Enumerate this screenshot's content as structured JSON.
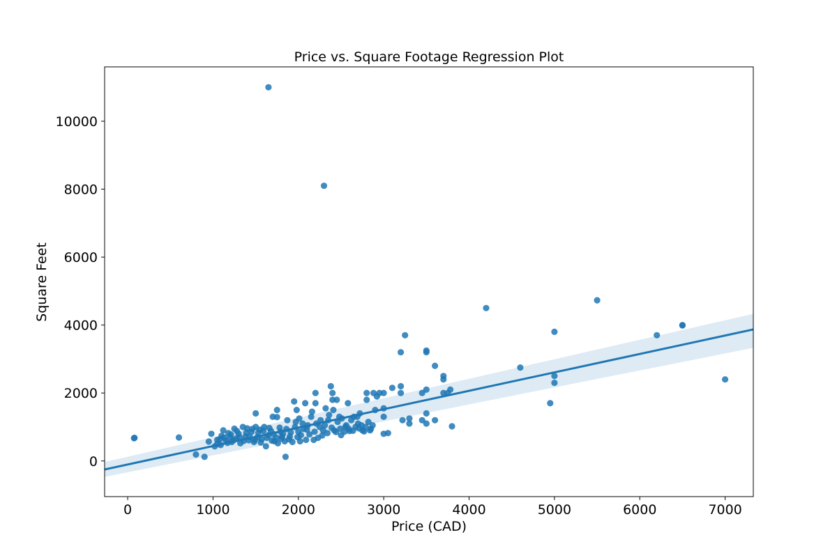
{
  "chart_data": {
    "type": "scatter",
    "title": "Price vs. Square Footage Regression Plot",
    "xlabel": "Price (CAD)",
    "ylabel": "Square Feet",
    "xlim": [
      -270,
      7330
    ],
    "ylim": [
      -1050,
      11600
    ],
    "xticks": [
      0,
      1000,
      2000,
      3000,
      4000,
      5000,
      6000,
      7000
    ],
    "yticks": [
      0,
      2000,
      4000,
      6000,
      8000,
      10000
    ],
    "grid": false,
    "legend": "none",
    "colors": {
      "points": "#1f77b4",
      "line": "#1f77b4",
      "band": "#1f77b4"
    },
    "regression": {
      "x": [
        -270,
        7330
      ],
      "y": [
        -250,
        3870
      ],
      "ci_lower": [
        -470,
        3330
      ],
      "ci_upper": [
        -30,
        4330
      ]
    },
    "series": [
      {
        "points": [
          [
            75,
            670
          ],
          [
            80,
            680
          ],
          [
            600,
            690
          ],
          [
            800,
            190
          ],
          [
            900,
            120
          ],
          [
            950,
            570
          ],
          [
            980,
            800
          ],
          [
            1020,
            430
          ],
          [
            1050,
            500
          ],
          [
            1080,
            640
          ],
          [
            1100,
            740
          ],
          [
            1120,
            900
          ],
          [
            1150,
            600
          ],
          [
            1180,
            820
          ],
          [
            1200,
            700
          ],
          [
            1220,
            560
          ],
          [
            1250,
            950
          ],
          [
            1270,
            660
          ],
          [
            1300,
            800
          ],
          [
            1320,
            520
          ],
          [
            1350,
            1000
          ],
          [
            1380,
            720
          ],
          [
            1400,
            960
          ],
          [
            1420,
            610
          ],
          [
            1450,
            850
          ],
          [
            1480,
            560
          ],
          [
            1500,
            1400
          ],
          [
            1500,
            1000
          ],
          [
            1520,
            700
          ],
          [
            1550,
            920
          ],
          [
            1570,
            640
          ],
          [
            1600,
            1000
          ],
          [
            1620,
            430
          ],
          [
            1650,
            760
          ],
          [
            1650,
            11000
          ],
          [
            1680,
            880
          ],
          [
            1700,
            1300
          ],
          [
            1720,
            580
          ],
          [
            1750,
            1500
          ],
          [
            1750,
            1290
          ],
          [
            1780,
            980
          ],
          [
            1800,
            660
          ],
          [
            1820,
            800
          ],
          [
            1850,
            120
          ],
          [
            1870,
            1200
          ],
          [
            1900,
            720
          ],
          [
            1950,
            1750
          ],
          [
            1960,
            1000
          ],
          [
            1980,
            1500
          ],
          [
            2000,
            860
          ],
          [
            2020,
            580
          ],
          [
            2050,
            1100
          ],
          [
            2080,
            1700
          ],
          [
            2100,
            920
          ],
          [
            2150,
            1300
          ],
          [
            2180,
            620
          ],
          [
            2200,
            2000
          ],
          [
            2200,
            1700
          ],
          [
            2250,
            1000
          ],
          [
            2280,
            750
          ],
          [
            2300,
            8100
          ],
          [
            2320,
            1550
          ],
          [
            2350,
            1200
          ],
          [
            2380,
            2200
          ],
          [
            2400,
            2000
          ],
          [
            2400,
            1800
          ],
          [
            2420,
            900
          ],
          [
            2450,
            1800
          ],
          [
            2480,
            1300
          ],
          [
            2500,
            760
          ],
          [
            2550,
            1000
          ],
          [
            2580,
            1700
          ],
          [
            2600,
            880
          ],
          [
            2650,
            1300
          ],
          [
            2700,
            1100
          ],
          [
            2720,
            1400
          ],
          [
            2750,
            900
          ],
          [
            2800,
            1800
          ],
          [
            2800,
            2000
          ],
          [
            2820,
            1150
          ],
          [
            2850,
            950
          ],
          [
            2880,
            2000
          ],
          [
            2900,
            1500
          ],
          [
            2920,
            1900
          ],
          [
            2950,
            2000
          ],
          [
            3000,
            2000
          ],
          [
            3000,
            1550
          ],
          [
            3000,
            1300
          ],
          [
            3000,
            800
          ],
          [
            3050,
            820
          ],
          [
            3100,
            2150
          ],
          [
            3200,
            3200
          ],
          [
            3200,
            2200
          ],
          [
            3200,
            2000
          ],
          [
            3220,
            1200
          ],
          [
            3250,
            3700
          ],
          [
            3300,
            1100
          ],
          [
            3300,
            1250
          ],
          [
            3450,
            2000
          ],
          [
            3450,
            1200
          ],
          [
            3500,
            3250
          ],
          [
            3500,
            3200
          ],
          [
            3500,
            2100
          ],
          [
            3500,
            1400
          ],
          [
            3500,
            1100
          ],
          [
            3600,
            2800
          ],
          [
            3600,
            1200
          ],
          [
            3700,
            2500
          ],
          [
            3700,
            2400
          ],
          [
            3700,
            2000
          ],
          [
            3750,
            2000
          ],
          [
            3780,
            2100
          ],
          [
            3800,
            1020
          ],
          [
            4200,
            4500
          ],
          [
            4600,
            2750
          ],
          [
            4950,
            1700
          ],
          [
            5000,
            3800
          ],
          [
            5000,
            2500
          ],
          [
            5000,
            2300
          ],
          [
            5500,
            4730
          ],
          [
            6200,
            3700
          ],
          [
            6500,
            4000
          ],
          [
            6500,
            3990
          ],
          [
            7000,
            2400
          ],
          [
            1050,
            620
          ],
          [
            1090,
            470
          ],
          [
            1130,
            690
          ],
          [
            1170,
            530
          ],
          [
            1210,
            780
          ],
          [
            1240,
            610
          ],
          [
            1280,
            880
          ],
          [
            1310,
            700
          ],
          [
            1360,
            590
          ],
          [
            1390,
            830
          ],
          [
            1430,
            710
          ],
          [
            1460,
            940
          ],
          [
            1490,
            620
          ],
          [
            1530,
            830
          ],
          [
            1560,
            540
          ],
          [
            1590,
            880
          ],
          [
            1630,
            680
          ],
          [
            1660,
            970
          ],
          [
            1690,
            600
          ],
          [
            1710,
            790
          ],
          [
            1740,
            690
          ],
          [
            1760,
            520
          ],
          [
            1790,
            860
          ],
          [
            1810,
            720
          ],
          [
            1840,
            580
          ],
          [
            1860,
            940
          ],
          [
            1890,
            640
          ],
          [
            1910,
            840
          ],
          [
            1930,
            560
          ],
          [
            1970,
            1150
          ],
          [
            1990,
            700
          ],
          [
            2010,
            1250
          ],
          [
            2030,
            760
          ],
          [
            2060,
            940
          ],
          [
            2090,
            620
          ],
          [
            2110,
            1050
          ],
          [
            2130,
            780
          ],
          [
            2160,
            1450
          ],
          [
            2190,
            860
          ],
          [
            2210,
            1100
          ],
          [
            2230,
            680
          ],
          [
            2260,
            1200
          ],
          [
            2290,
            900
          ],
          [
            2310,
            1050
          ],
          [
            2340,
            820
          ],
          [
            2360,
            1350
          ],
          [
            2390,
            980
          ],
          [
            2410,
            1500
          ],
          [
            2440,
            850
          ],
          [
            2460,
            1150
          ],
          [
            2490,
            950
          ],
          [
            2510,
            1250
          ],
          [
            2540,
            860
          ],
          [
            2560,
            1050
          ],
          [
            2590,
            950
          ],
          [
            2620,
            1200
          ],
          [
            2640,
            890
          ],
          [
            2670,
            1000
          ],
          [
            2690,
            1300
          ],
          [
            2710,
            960
          ],
          [
            2740,
            1050
          ],
          [
            2770,
            870
          ],
          [
            2790,
            1000
          ],
          [
            2840,
            900
          ],
          [
            2870,
            1050
          ]
        ]
      }
    ]
  }
}
